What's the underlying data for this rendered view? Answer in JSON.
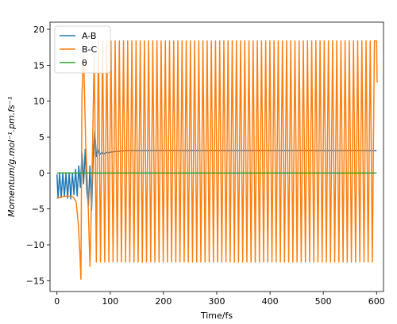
{
  "chart_data": {
    "type": "line",
    "xlabel": "Time/fs",
    "ylabel": "Momentum/g.mol⁻¹.pm.fs⁻¹",
    "xlim": [
      -13,
      613
    ],
    "ylim": [
      -16.5,
      21
    ],
    "x_ticks": [
      0,
      100,
      200,
      300,
      400,
      500,
      600
    ],
    "y_ticks": [
      -15,
      -10,
      -5,
      0,
      5,
      10,
      15,
      20
    ],
    "grid": false,
    "legend_position": "top-left",
    "series": [
      {
        "name": "A-B",
        "color": "#1f77b4",
        "x": [
          0,
          2,
          5,
          8,
          11,
          14,
          17,
          20,
          23,
          26,
          29,
          32,
          35,
          38,
          41,
          44,
          47,
          50,
          53,
          56,
          59,
          62,
          65,
          68,
          71,
          74,
          77,
          80,
          84,
          88,
          92,
          96,
          100,
          110,
          120,
          130,
          150,
          200,
          300,
          400,
          500,
          600
        ],
        "y": [
          -0.2,
          -3.5,
          0,
          -3.4,
          0,
          -3.3,
          0,
          -3.5,
          0,
          -3.6,
          0,
          -3.0,
          0.5,
          -3.2,
          1.0,
          -2.0,
          2.8,
          -1.5,
          3.3,
          -2.5,
          -4.5,
          1.0,
          -5.2,
          2.0,
          5.8,
          2.3,
          3.2,
          2.5,
          2.9,
          2.6,
          2.9,
          2.8,
          2.9,
          3.0,
          3.05,
          3.1,
          3.1,
          3.1,
          3.1,
          3.1,
          3.1,
          3.1
        ]
      },
      {
        "name": "B-C",
        "color": "#ff7f0e",
        "osc_start": 70,
        "osc_end": 601,
        "osc_period": 7.85,
        "amplitude_upper": 18.4,
        "amplitude_lower": -12.4,
        "x": [
          0,
          10,
          20,
          30,
          36,
          40,
          43,
          45,
          47,
          50,
          54,
          58,
          62,
          66,
          70
        ],
        "y": [
          -3.5,
          -3.3,
          -3.2,
          -3.3,
          -4.0,
          -7.0,
          -11.0,
          -14.8,
          11.0,
          16.5,
          4.0,
          -3.0,
          -13.0,
          0.0,
          17.0
        ],
        "end_value": 12.6
      },
      {
        "name": "θ",
        "color": "#2ca02c",
        "x": [
          0,
          600
        ],
        "y": [
          0,
          0
        ]
      }
    ]
  }
}
